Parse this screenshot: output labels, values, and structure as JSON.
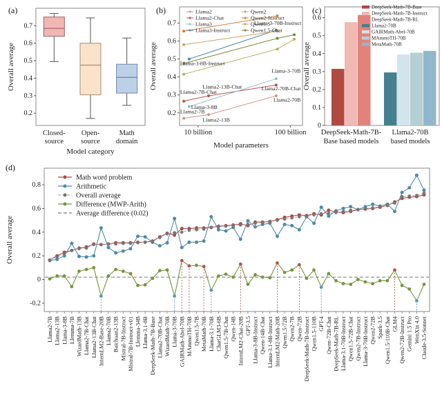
{
  "figure": {
    "panel_labels": {
      "a": "(a)",
      "b": "(b)",
      "c": "(c)",
      "d": "(d)"
    }
  },
  "chart_data": [
    {
      "id": "a",
      "type": "box",
      "ylabel": "Overall average",
      "xlabel": "Model category",
      "ylim": [
        0.13,
        0.8
      ],
      "yticks": [
        0.2,
        0.3,
        0.4,
        0.5,
        0.6,
        0.7
      ],
      "categories": [
        "Closed-source",
        "Open-source",
        "Math domain"
      ],
      "category_lines": [
        [
          "Closed-",
          "source"
        ],
        [
          "Open-",
          "source"
        ],
        [
          "Math",
          "domain"
        ]
      ],
      "boxes": [
        {
          "name": "Closed-source",
          "min": 0.495,
          "q1": 0.64,
          "median": 0.685,
          "q3": 0.75,
          "max": 0.77,
          "fill": "#f2b6b4",
          "stroke": "#9c6260"
        },
        {
          "name": "Open-source",
          "min": 0.17,
          "q1": 0.305,
          "median": 0.475,
          "q3": 0.6,
          "max": 0.745,
          "fill": "#fae3cb",
          "stroke": "#a98c6e"
        },
        {
          "name": "Math domain",
          "min": 0.245,
          "q1": 0.315,
          "median": 0.405,
          "q3": 0.48,
          "max": 0.63,
          "fill": "#bcd1e8",
          "stroke": "#6d87a6"
        }
      ]
    },
    {
      "id": "b",
      "type": "line-log",
      "ylabel": "Overall average",
      "xlabel": "Model parameters",
      "ylim": [
        0.13,
        0.79
      ],
      "yticks": [
        0.2,
        0.3,
        0.4,
        0.5,
        0.6,
        0.7
      ],
      "xlim": [
        6.3,
        135
      ],
      "xticks": [
        {
          "v": 10,
          "label": "10 billion"
        },
        {
          "v": 100,
          "label": "100 billion"
        }
      ],
      "series": [
        {
          "name": "Llama2",
          "color": "#d09390",
          "points": [
            [
              7,
              0.17
            ],
            [
              13,
              0.19
            ],
            [
              70,
              0.295
            ]
          ]
        },
        {
          "name": "Llama2-Chat",
          "color": "#b3524d",
          "points": [
            [
              7,
              0.265
            ],
            [
              13,
              0.295
            ],
            [
              70,
              0.355
            ]
          ]
        },
        {
          "name": "Llama3",
          "color": "#93becd",
          "points": [
            [
              8,
              0.235
            ],
            [
              70,
              0.39
            ]
          ]
        },
        {
          "name": "Llama3-Instruct",
          "color": "#4f8ba4",
          "points": [
            [
              8,
              0.5
            ],
            [
              70,
              0.66
            ]
          ]
        },
        {
          "name": "Qwen2",
          "color": "#d2a266",
          "points": [
            [
              7,
              0.58
            ],
            [
              72,
              0.655
            ]
          ]
        },
        {
          "name": "Qwen2-Instruct",
          "color": "#cf7f3a",
          "points": [
            [
              7,
              0.655
            ],
            [
              72,
              0.74
            ]
          ]
        },
        {
          "name": "Qwen1.5",
          "color": "#b3ad5e",
          "points": [
            [
              7,
              0.415
            ],
            [
              72,
              0.555
            ],
            [
              110,
              0.61
            ]
          ]
        },
        {
          "name": "Qwen1.5-Chat",
          "color": "#75862f",
          "points": [
            [
              7,
              0.475
            ],
            [
              72,
              0.615
            ],
            [
              110,
              0.635
            ]
          ]
        }
      ],
      "legend_columns": [
        [
          "Llama2",
          "Llama2-Chat",
          "Llama3",
          "Llama3-Instruct"
        ],
        [
          "Qwen2",
          "Qwen2-Instruct",
          "Qwen1.5",
          "Qwen1.5-Chat"
        ]
      ],
      "annotations": [
        {
          "text": "Llama-3-8B-Instruct",
          "x": 6.4,
          "y": 0.465,
          "anchor": "start",
          "color": "#8ab6c9"
        },
        {
          "text": "Llama-3-70B-Instruct",
          "x": 131,
          "y": 0.69,
          "anchor": "end",
          "color": "#5694ad"
        },
        {
          "text": "Llama-3-70B",
          "x": 129,
          "y": 0.423,
          "anchor": "end",
          "color": "#8ab6c9"
        },
        {
          "text": "Llama-3-8B",
          "x": 8.4,
          "y": 0.222,
          "anchor": "start",
          "color": "#8ab6c9"
        },
        {
          "text": "Llama2-13B-Chat",
          "x": 11.2,
          "y": 0.335,
          "anchor": "start",
          "color": "#c97f7a"
        },
        {
          "text": "Llama2-7B-Chat",
          "x": 6.4,
          "y": 0.306,
          "anchor": "start",
          "color": "#c97f7a"
        },
        {
          "text": "Llama2-70B-Chat",
          "x": 129,
          "y": 0.326,
          "anchor": "end",
          "color": "#c97f7a"
        },
        {
          "text": "Llama2-70B",
          "x": 129,
          "y": 0.262,
          "anchor": "end",
          "color": "#c97f7a"
        },
        {
          "text": "Llama2-7B",
          "x": 6.4,
          "y": 0.197,
          "anchor": "start",
          "color": "#c97f7a"
        },
        {
          "text": "Llama2-13B",
          "x": 11.2,
          "y": 0.152,
          "anchor": "start",
          "color": "#c97f7a"
        }
      ]
    },
    {
      "id": "c",
      "type": "bar",
      "ylabel": "Overall average",
      "ylim": [
        0,
        0.66
      ],
      "yticks": [
        0,
        0.1,
        0.2,
        0.3,
        0.4,
        0.5,
        0.6
      ],
      "groups": [
        {
          "label_lines": [
            "DeepSeek-Math-7B-",
            "Base based models"
          ],
          "bars": [
            {
              "name": "DeepSeek-Math-7B-Base",
              "value": 0.315,
              "color": "#b0493f"
            },
            {
              "name": "DeepSeek-Math-7B-Instruct",
              "value": 0.575,
              "color": "#f0b9b2"
            },
            {
              "name": "DeepSeek-Math-7B-RL",
              "value": 0.615,
              "color": "#e2837b"
            }
          ]
        },
        {
          "label_lines": [
            "Llama2-70B",
            "based models"
          ],
          "bars": [
            {
              "name": "Llama2-70B",
              "value": 0.295,
              "color": "#44808f"
            },
            {
              "name": "GAIRMath-Abel-70B",
              "value": 0.395,
              "color": "#d3e5ec"
            },
            {
              "name": "MAmmoTH-70B",
              "value": 0.405,
              "color": "#b4d0d5"
            },
            {
              "name": "MetaMath-70B",
              "value": 0.415,
              "color": "#92b7cb"
            }
          ]
        }
      ]
    },
    {
      "id": "d",
      "type": "line-cat",
      "ylabel": "Overall average",
      "ylim": [
        -0.27,
        0.94
      ],
      "yticks": [
        -0.2,
        0,
        0.2,
        0.4,
        0.6,
        0.8
      ],
      "average_difference": 0.02,
      "legend": [
        "Math word problem",
        "Arithmetic",
        "Overall average",
        "Difference (MWP-Arith)",
        "Average difference (0.02)"
      ],
      "colors": {
        "mwp": "#a84c48",
        "arith": "#4d8ba8",
        "overall": "#757575",
        "overall_line": "#a9a9a9",
        "diff": "#76953f",
        "marker_pos": "#b0534e",
        "marker_neg": "#5b99b5",
        "label_blue": "#8ab6c9",
        "label_red": "#a84c48",
        "label_black": "#1a1a1a"
      },
      "categories": [
        "Llama2-7B",
        "Llama2-13B",
        "Llama-3-8B",
        "Llemma-7B",
        "WizardMath-13B",
        "Llama2-7B-Chat",
        "Llama2-13B-Chat",
        "InternLM2-Base-20B",
        "Llama2-70B",
        "Baichuan2-13B",
        "Mistral-7B-Instruct",
        "Mistral-7B-Instruct-v01",
        "Llemma-34B",
        "Llama-3.1-8B",
        "DeepSeek-Math-7B-Base",
        "Llama2-70B-Chat",
        "WizardMath-70B",
        "Llama-3-70B",
        "GAIRMath-Abel-70B",
        "MAmmoTH-70B",
        "Qwen1.5-7B",
        "MetaMath-70B",
        "Llama-3.1-70B",
        "ChatGLM3-6B",
        "Qwen1.5-7B-Chat",
        "Qwen-14B",
        "InternLM2-Chat-20B",
        "GPT-3.5",
        "Llama-3-8B-Instruct",
        "Qwen-14B-Chat",
        "Llama-3.1-8B-Instruct",
        "InternLM2-Math-20B",
        "Qwen1.5-72B",
        "Qwen2-7B",
        "Qwen-72B",
        "DeepSeek-Math-7B-Instruct",
        "Qwen1.5-110B",
        "GPT-4",
        "Qwen-72B-Chat",
        "DeepSeek-Math-7B-RL",
        "Llama-3.1-70B-Instruct",
        "Qwen1.5-72B-Chat",
        "Qwen2-7B-Instruct",
        "Llama-3-70B-Instruct",
        "Qwen2-72B",
        "Spark-3.5",
        "Qwen1.5-110B-Chat",
        "GLM4",
        "Qwen2-72B-Instruct",
        "Gemini 1.5 Pro",
        "WenXin 4.0",
        "Claude-3.5-Sonnet"
      ],
      "label_color": [
        "k",
        "k",
        "k",
        "k",
        "k",
        "k",
        "k",
        "b",
        "k",
        "k",
        "k",
        "k",
        "k",
        "k",
        "k",
        "k",
        "k",
        "b",
        "r",
        "r",
        "k",
        "r",
        "b",
        "k",
        "k",
        "k",
        "r",
        "k",
        "k",
        "k",
        "k",
        "r",
        "k",
        "k",
        "r",
        "k",
        "k",
        "b",
        "k",
        "k",
        "k",
        "k",
        "k",
        "k",
        "k",
        "k",
        "k",
        "r",
        "k",
        "k",
        "b",
        "k"
      ],
      "series": {
        "mwp": [
          0.165,
          0.2,
          0.23,
          0.245,
          0.265,
          0.275,
          0.3,
          0.295,
          0.3,
          0.31,
          0.31,
          0.31,
          0.315,
          0.315,
          0.325,
          0.36,
          0.39,
          0.375,
          0.43,
          0.43,
          0.435,
          0.435,
          0.44,
          0.45,
          0.455,
          0.46,
          0.47,
          0.455,
          0.485,
          0.485,
          0.49,
          0.505,
          0.525,
          0.535,
          0.545,
          0.54,
          0.555,
          0.545,
          0.585,
          0.57,
          0.565,
          0.575,
          0.59,
          0.595,
          0.6,
          0.61,
          0.625,
          0.655,
          0.685,
          0.695,
          0.7,
          0.715
        ],
        "arith": [
          0.16,
          0.17,
          0.2,
          0.305,
          0.195,
          0.19,
          0.2,
          0.435,
          0.27,
          0.225,
          0.24,
          0.26,
          0.365,
          0.36,
          0.315,
          0.285,
          0.31,
          0.515,
          0.27,
          0.315,
          0.315,
          0.325,
          0.53,
          0.42,
          0.41,
          0.44,
          0.34,
          0.495,
          0.445,
          0.465,
          0.475,
          0.365,
          0.465,
          0.455,
          0.42,
          0.53,
          0.475,
          0.61,
          0.535,
          0.58,
          0.6,
          0.615,
          0.59,
          0.615,
          0.635,
          0.62,
          0.635,
          0.575,
          0.735,
          0.775,
          0.88,
          0.755
        ],
        "overall": [
          0.165,
          0.19,
          0.22,
          0.245,
          0.26,
          0.265,
          0.295,
          0.295,
          0.3,
          0.3,
          0.305,
          0.305,
          0.31,
          0.315,
          0.32,
          0.355,
          0.385,
          0.395,
          0.4,
          0.415,
          0.42,
          0.425,
          0.44,
          0.445,
          0.45,
          0.455,
          0.46,
          0.465,
          0.475,
          0.48,
          0.49,
          0.5,
          0.51,
          0.52,
          0.53,
          0.535,
          0.545,
          0.555,
          0.56,
          0.565,
          0.575,
          0.585,
          0.59,
          0.6,
          0.605,
          0.615,
          0.625,
          0.645,
          0.7,
          0.705,
          0.71,
          0.73
        ],
        "diff": [
          0.005,
          0.03,
          0.03,
          -0.06,
          0.07,
          0.085,
          0.1,
          -0.14,
          0.03,
          0.085,
          0.07,
          0.05,
          -0.05,
          -0.045,
          0.01,
          0.075,
          0.08,
          -0.14,
          0.16,
          0.115,
          0.12,
          0.11,
          -0.09,
          0.03,
          0.045,
          0.02,
          0.13,
          -0.04,
          0.04,
          0.02,
          0.015,
          0.14,
          0.06,
          0.08,
          0.125,
          0.01,
          0.08,
          -0.065,
          0.05,
          -0.01,
          -0.035,
          -0.04,
          0.0,
          -0.02,
          -0.035,
          -0.01,
          -0.01,
          0.08,
          -0.05,
          -0.08,
          -0.18,
          -0.04
        ]
      },
      "diff_marker": [
        null,
        null,
        null,
        null,
        null,
        null,
        null,
        "neg",
        null,
        null,
        null,
        null,
        null,
        null,
        null,
        null,
        null,
        "neg",
        "pos",
        "pos",
        null,
        "pos",
        "neg",
        null,
        null,
        null,
        "pos",
        null,
        null,
        null,
        null,
        "pos",
        null,
        null,
        "pos",
        null,
        null,
        "neg",
        null,
        null,
        null,
        null,
        null,
        null,
        null,
        null,
        null,
        "pos",
        null,
        null,
        "neg",
        null
      ]
    }
  ]
}
